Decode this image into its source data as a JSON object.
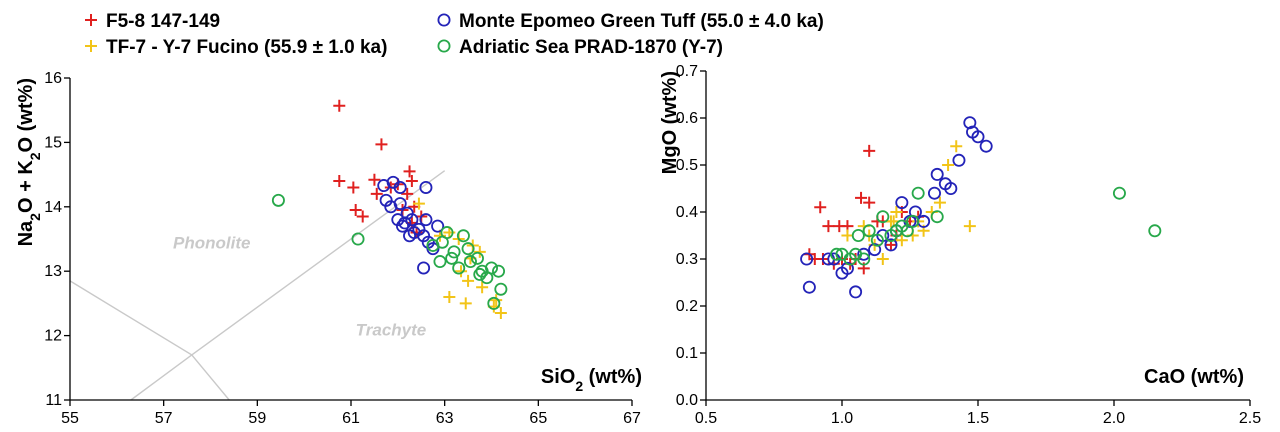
{
  "colors": {
    "F5-8 147-149": "#e0201f",
    "TF-7 - Y-7 Fucino (55.9 ± 1.0 ka)": "#f2c418",
    "Monte Epomeo Green Tuff (55.0 ± 4.0 ka)": "#2323b8",
    "Adriatic Sea PRAD-1870 (Y-7)": "#27a84a"
  },
  "legend": [
    {
      "label": "F5-8 147-149",
      "marker": "plus"
    },
    {
      "label": "TF-7 - Y-7 Fucino (55.9 ± 1.0 ka)",
      "marker": "plus"
    },
    {
      "label": "Monte Epomeo Green Tuff (55.0 ± 4.0 ka)",
      "marker": "circle"
    },
    {
      "label": "Adriatic Sea PRAD-1870 (Y-7)",
      "marker": "circle"
    }
  ],
  "chart_data": [
    {
      "type": "scatter",
      "title": "",
      "xlabel": {
        "main": "SiO",
        "sub": "2",
        "unit": " (wt%)"
      },
      "ylabel": {
        "parts": [
          [
            "Na",
            ""
          ],
          [
            "2",
            "sub"
          ],
          [
            "O + K",
            ""
          ],
          [
            "2",
            "sub"
          ],
          [
            "O (wt%)",
            ""
          ]
        ]
      },
      "xlim": [
        55,
        67
      ],
      "ylim": [
        11,
        16
      ],
      "xticks": [
        "55",
        "57",
        "59",
        "61",
        "63",
        "65",
        "67"
      ],
      "yticks": [
        "11",
        "12",
        "13",
        "14",
        "15",
        "16"
      ],
      "grid": false,
      "field_labels": [
        {
          "text": "Phonolite",
          "x": 57.2,
          "y": 13.35
        },
        {
          "text": "Trachyte",
          "x": 61.1,
          "y": 12.0
        }
      ],
      "boundary_lines": [
        [
          [
            55.0,
            12.85
          ],
          [
            57.6,
            11.7
          ],
          [
            58.4,
            11.0
          ]
        ],
        [
          [
            56.3,
            11.0
          ],
          [
            57.6,
            11.7
          ],
          [
            63.0,
            14.56
          ]
        ]
      ],
      "series": [
        {
          "name": "F5-8 147-149",
          "marker": "plus",
          "points": [
            [
              60.75,
              15.57
            ],
            [
              61.65,
              14.97
            ],
            [
              60.75,
              14.4
            ],
            [
              61.05,
              14.3
            ],
            [
              61.5,
              14.42
            ],
            [
              61.1,
              13.95
            ],
            [
              61.25,
              13.85
            ],
            [
              61.55,
              14.2
            ],
            [
              61.85,
              14.3
            ],
            [
              62.0,
              14.35
            ],
            [
              62.25,
              14.55
            ],
            [
              62.3,
              14.4
            ],
            [
              62.2,
              14.2
            ],
            [
              62.35,
              14.0
            ],
            [
              62.1,
              13.95
            ],
            [
              62.5,
              13.85
            ],
            [
              62.3,
              13.75
            ],
            [
              62.4,
              13.6
            ]
          ]
        },
        {
          "name": "TF-7 - Y-7 Fucino (55.9 ± 1.0 ka)",
          "marker": "plus",
          "points": [
            [
              62.45,
              14.05
            ],
            [
              62.9,
              13.55
            ],
            [
              63.1,
              13.6
            ],
            [
              63.3,
              13.5
            ],
            [
              63.6,
              13.4
            ],
            [
              63.75,
              13.3
            ],
            [
              63.55,
              13.2
            ],
            [
              63.35,
              13.0
            ],
            [
              63.5,
              12.85
            ],
            [
              63.8,
              12.75
            ],
            [
              63.1,
              12.6
            ],
            [
              63.45,
              12.5
            ],
            [
              64.05,
              12.45
            ],
            [
              64.2,
              12.35
            ],
            [
              64.1,
              12.55
            ]
          ]
        },
        {
          "name": "Monte Epomeo Green Tuff (55.0 ± 4.0 ka)",
          "marker": "circle",
          "points": [
            [
              61.7,
              14.33
            ],
            [
              61.9,
              14.38
            ],
            [
              62.05,
              14.3
            ],
            [
              62.6,
              14.3
            ],
            [
              61.75,
              14.1
            ],
            [
              61.85,
              14.0
            ],
            [
              62.05,
              14.05
            ],
            [
              62.2,
              13.9
            ],
            [
              62.0,
              13.8
            ],
            [
              62.15,
              13.75
            ],
            [
              62.3,
              13.8
            ],
            [
              62.1,
              13.7
            ],
            [
              62.35,
              13.6
            ],
            [
              62.25,
              13.55
            ],
            [
              62.55,
              13.55
            ],
            [
              62.6,
              13.8
            ],
            [
              62.65,
              13.45
            ],
            [
              62.75,
              13.35
            ],
            [
              62.85,
              13.7
            ],
            [
              62.55,
              13.05
            ],
            [
              62.45,
              13.65
            ]
          ]
        },
        {
          "name": "Adriatic Sea PRAD-1870 (Y-7)",
          "marker": "circle",
          "points": [
            [
              59.45,
              14.1
            ],
            [
              61.15,
              13.5
            ],
            [
              62.75,
              13.4
            ],
            [
              62.95,
              13.45
            ],
            [
              63.05,
              13.6
            ],
            [
              63.2,
              13.3
            ],
            [
              63.4,
              13.55
            ],
            [
              63.15,
              13.2
            ],
            [
              63.3,
              13.05
            ],
            [
              63.5,
              13.35
            ],
            [
              63.55,
              13.15
            ],
            [
              63.7,
              13.2
            ],
            [
              63.8,
              13.0
            ],
            [
              63.9,
              12.9
            ],
            [
              64.0,
              13.05
            ],
            [
              64.15,
              13.0
            ],
            [
              64.2,
              12.72
            ],
            [
              64.05,
              12.5
            ],
            [
              63.75,
              12.95
            ],
            [
              62.9,
              13.15
            ]
          ]
        }
      ]
    },
    {
      "type": "scatter",
      "title": "",
      "xlabel": {
        "main": "CaO (wt%)",
        "sub": "",
        "unit": ""
      },
      "ylabel": {
        "parts": [
          [
            "MgO (wt%)",
            ""
          ]
        ]
      },
      "xlim": [
        0.5,
        2.5
      ],
      "ylim": [
        0.0,
        0.7
      ],
      "xticks": [
        "0.5",
        "1.0",
        "1.5",
        "2.0",
        "2.5"
      ],
      "yticks": [
        "0.0",
        "0.1",
        "0.2",
        "0.3",
        "0.4",
        "0.5",
        "0.6",
        "0.7"
      ],
      "grid": false,
      "field_labels": [],
      "boundary_lines": [],
      "series": [
        {
          "name": "F5-8 147-149",
          "marker": "plus",
          "points": [
            [
              0.88,
              0.31
            ],
            [
              0.92,
              0.41
            ],
            [
              0.95,
              0.37
            ],
            [
              0.99,
              0.37
            ],
            [
              1.02,
              0.37
            ],
            [
              1.07,
              0.43
            ],
            [
              1.1,
              0.42
            ],
            [
              1.13,
              0.38
            ],
            [
              1.15,
              0.38
            ],
            [
              1.1,
              0.53
            ],
            [
              0.93,
              0.3
            ],
            [
              0.97,
              0.29
            ],
            [
              1.0,
              0.3
            ],
            [
              1.03,
              0.29
            ],
            [
              1.05,
              0.3
            ],
            [
              1.08,
              0.28
            ],
            [
              1.18,
              0.33
            ],
            [
              1.2,
              0.35
            ],
            [
              1.22,
              0.4
            ],
            [
              1.25,
              0.38
            ],
            [
              1.28,
              0.39
            ],
            [
              0.9,
              0.3
            ]
          ]
        },
        {
          "name": "TF-7 - Y-7 Fucino (55.9 ± 1.0 ka)",
          "marker": "plus",
          "points": [
            [
              1.02,
              0.35
            ],
            [
              1.08,
              0.37
            ],
            [
              1.12,
              0.33
            ],
            [
              1.15,
              0.3
            ],
            [
              1.18,
              0.38
            ],
            [
              1.2,
              0.4
            ],
            [
              1.22,
              0.34
            ],
            [
              1.26,
              0.35
            ],
            [
              1.3,
              0.36
            ],
            [
              1.33,
              0.4
            ],
            [
              1.36,
              0.42
            ],
            [
              1.39,
              0.5
            ],
            [
              1.42,
              0.54
            ],
            [
              1.47,
              0.37
            ],
            [
              1.1,
              0.35
            ],
            [
              1.19,
              0.38
            ],
            [
              1.28,
              0.38
            ]
          ]
        },
        {
          "name": "Monte Epomeo Green Tuff (55.0 ± 4.0 ka)",
          "marker": "circle",
          "points": [
            [
              0.87,
              0.3
            ],
            [
              0.88,
              0.24
            ],
            [
              0.95,
              0.3
            ],
            [
              0.97,
              0.3
            ],
            [
              1.0,
              0.27
            ],
            [
              1.02,
              0.28
            ],
            [
              1.05,
              0.23
            ],
            [
              1.08,
              0.31
            ],
            [
              1.12,
              0.32
            ],
            [
              1.15,
              0.35
            ],
            [
              1.18,
              0.33
            ],
            [
              1.2,
              0.36
            ],
            [
              1.22,
              0.42
            ],
            [
              1.25,
              0.38
            ],
            [
              1.27,
              0.4
            ],
            [
              1.3,
              0.38
            ],
            [
              1.34,
              0.44
            ],
            [
              1.35,
              0.48
            ],
            [
              1.38,
              0.46
            ],
            [
              1.4,
              0.45
            ],
            [
              1.43,
              0.51
            ],
            [
              1.47,
              0.59
            ],
            [
              1.48,
              0.57
            ],
            [
              1.5,
              0.56
            ],
            [
              1.53,
              0.54
            ]
          ]
        },
        {
          "name": "Adriatic Sea PRAD-1870 (Y-7)",
          "marker": "circle",
          "points": [
            [
              0.98,
              0.31
            ],
            [
              1.0,
              0.31
            ],
            [
              1.03,
              0.3
            ],
            [
              1.05,
              0.31
            ],
            [
              1.06,
              0.35
            ],
            [
              1.08,
              0.3
            ],
            [
              1.1,
              0.36
            ],
            [
              1.13,
              0.34
            ],
            [
              1.15,
              0.39
            ],
            [
              1.18,
              0.35
            ],
            [
              1.2,
              0.36
            ],
            [
              1.22,
              0.37
            ],
            [
              1.24,
              0.36
            ],
            [
              1.26,
              0.38
            ],
            [
              1.28,
              0.44
            ],
            [
              1.35,
              0.39
            ],
            [
              2.02,
              0.44
            ],
            [
              2.15,
              0.36
            ]
          ]
        }
      ]
    }
  ]
}
